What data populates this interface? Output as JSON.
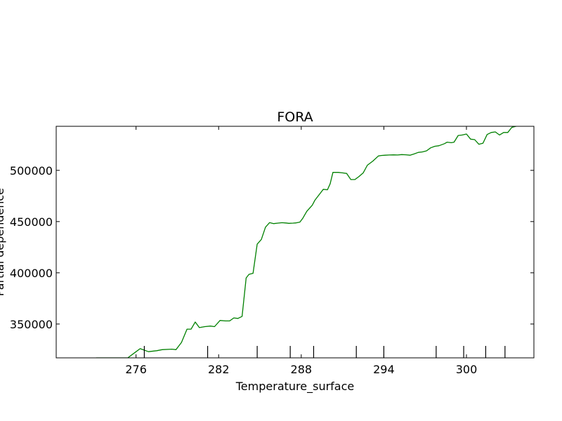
{
  "chart_data": {
    "type": "line",
    "title": "FORA",
    "xlabel": "Temperature_surface",
    "ylabel": "Partial dependence",
    "xlim": [
      270.2,
      304.9
    ],
    "ylim": [
      317000,
      543000
    ],
    "x_ticks": [
      276,
      282,
      288,
      294,
      300
    ],
    "y_ticks": [
      350000,
      400000,
      450000,
      500000
    ],
    "rug_x": [
      276.6,
      281.2,
      284.8,
      287.2,
      288.9,
      292.0,
      294.0,
      297.8,
      299.8,
      301.4,
      302.8
    ],
    "line_color": "#008000",
    "grid": false,
    "series": [
      {
        "x": [
          273.1,
          275.4,
          276.0,
          276.3,
          276.9,
          277.5,
          277.9,
          278.6,
          278.9,
          279.3,
          279.7,
          280.0,
          280.3,
          280.6,
          281.0,
          281.4,
          281.7,
          282.1,
          282.5,
          282.8,
          283.1,
          283.4,
          283.7,
          284.0,
          284.2,
          284.5,
          284.8,
          285.1,
          285.4,
          285.7,
          286.0,
          286.3,
          286.6,
          286.9,
          287.1,
          287.4,
          287.6,
          287.9,
          288.1,
          288.4,
          288.8,
          289.0,
          289.4,
          289.6,
          289.9,
          290.1,
          290.3,
          290.7,
          291.0,
          291.3,
          291.6,
          291.9,
          292.2,
          292.5,
          292.8,
          293.2,
          293.6,
          293.8,
          294.1,
          294.4,
          294.7,
          295.0,
          295.3,
          295.6,
          295.9,
          296.2,
          296.5,
          296.8,
          297.1,
          297.4,
          297.7,
          298.0,
          298.4,
          298.6,
          298.9,
          299.1,
          299.4,
          299.7,
          300.0,
          300.3,
          300.6,
          300.9,
          301.2,
          301.5,
          301.8,
          302.1,
          302.4,
          302.7,
          303.0,
          303.3,
          303.6,
          303.9,
          304.2
        ],
        "y": [
          317000,
          317000,
          323000,
          326000,
          323000,
          324000,
          325000,
          325500,
          325000,
          332000,
          345000,
          345000,
          352000,
          346500,
          347500,
          348000,
          347500,
          353500,
          353000,
          353000,
          356000,
          355500,
          357500,
          395000,
          398500,
          399500,
          428000,
          432500,
          444500,
          449000,
          448000,
          448500,
          448900,
          448600,
          448300,
          448500,
          448700,
          449500,
          453000,
          460000,
          466000,
          471000,
          478000,
          481500,
          481000,
          487000,
          498000,
          498000,
          497500,
          497000,
          491000,
          491000,
          494000,
          497500,
          505000,
          509000,
          514000,
          514500,
          514800,
          515000,
          515100,
          515000,
          515400,
          515200,
          514800,
          516000,
          517500,
          518000,
          519000,
          522000,
          523500,
          524000,
          526000,
          527500,
          527000,
          527500,
          534000,
          534500,
          535500,
          530500,
          530000,
          525500,
          526500,
          535000,
          537000,
          537500,
          534500,
          537000,
          537000,
          542000,
          543000,
          543500,
          544000
        ]
      }
    ]
  }
}
